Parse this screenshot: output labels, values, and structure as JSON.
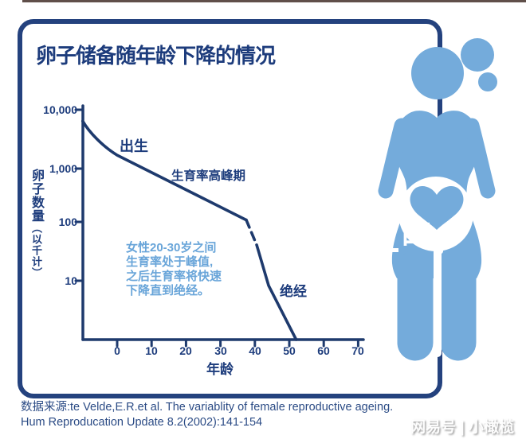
{
  "title": "卵子储备随年龄下降的情况",
  "chart_data": {
    "type": "line",
    "title": "卵子储备随年龄下降的情况",
    "xlabel": "年龄",
    "ylabel": "卵子数量（以千计）",
    "y_scale": "log",
    "xlim": [
      -10,
      70
    ],
    "ylim": [
      1,
      10000
    ],
    "grid": false,
    "x_ticks": [
      0,
      10,
      20,
      30,
      40,
      50,
      60,
      70
    ],
    "y_ticks": [
      10000,
      1000,
      100,
      10
    ],
    "series": [
      {
        "name": "卵子数量(以千计)",
        "points": [
          [
            -10,
            5800
          ],
          [
            0,
            1500
          ],
          [
            37.5,
            115
          ],
          [
            40.5,
            43
          ],
          [
            44,
            8.5
          ],
          [
            52,
            1
          ]
        ],
        "segments": [
          {
            "from": 0,
            "to": 2,
            "dash": false
          },
          {
            "from": 2,
            "to": 3,
            "dash": true
          },
          {
            "from": 3,
            "to": 5,
            "dash": false
          }
        ]
      }
    ],
    "point_annotations": [
      {
        "label": "出生",
        "x": 3,
        "y": 2600
      },
      {
        "label": "生育率高峰期",
        "x": 18,
        "y": 800
      },
      {
        "label": "绝经",
        "x": 49,
        "y": 9
      }
    ],
    "text_annotation": "女性20-30岁之间生育率处于峰值,之后生育率将快速下降直到绝经。"
  },
  "chart": {
    "y_axis_title_main": "卵子数量",
    "y_axis_title_sub": "（以千计）",
    "y_tick_labels": [
      "10,000",
      "1,000",
      "100",
      "10"
    ],
    "x_tick_labels": [
      "0",
      "10",
      "20",
      "30",
      "40",
      "50",
      "60",
      "70"
    ],
    "x_axis_title": "年龄",
    "label_birth": "出生",
    "label_peak": "生育率高峰期",
    "label_menopause": "绝经",
    "annotation_lines": [
      "女性20-30岁之间",
      "生育率处于峰值,",
      "之后生育率将快速",
      "下降直到绝经。"
    ]
  },
  "source": {
    "line1": "数据来源:te Velde,E.R.et al. The variablity of female reproductive ageing.",
    "line2": "Hum Reproducation Update 8.2(2002):141-154"
  },
  "watermark": {
    "brand": "网易号 | 小橄榄",
    "overlay_fragment": "的"
  },
  "colors": {
    "navy_border": "#24427E",
    "navy_text": "#1D3C7C",
    "line_navy": "#1E3A6D",
    "figure_blue": "#74ABDB",
    "annotation_blue": "#69A5D9",
    "source_navy": "#2B4B85"
  }
}
